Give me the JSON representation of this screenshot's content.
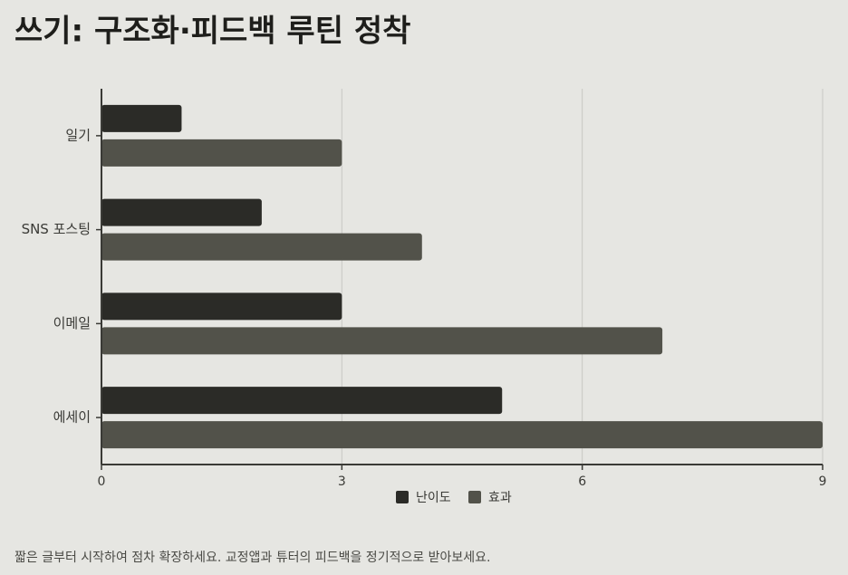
{
  "chart_data": {
    "type": "bar",
    "orientation": "horizontal",
    "title": "쓰기: 구조화·피드백 루틴 정착",
    "categories": [
      "일기",
      "SNS 포스팅",
      "이메일",
      "에세이"
    ],
    "series": [
      {
        "name": "난이도",
        "color": "#2b2b27",
        "values": [
          1,
          2,
          3,
          5
        ]
      },
      {
        "name": "효과",
        "color": "#52524a",
        "values": [
          3,
          4,
          7,
          9
        ]
      }
    ],
    "xlim": [
      0,
      9
    ],
    "xticks": [
      0,
      3,
      6,
      9
    ],
    "grid": true,
    "legend": "bottom",
    "note": "짧은 글부터 시작하여 점차 확장하세요. 교정앱과 튜터의 피드백을 정기적으로 받아보세요."
  }
}
